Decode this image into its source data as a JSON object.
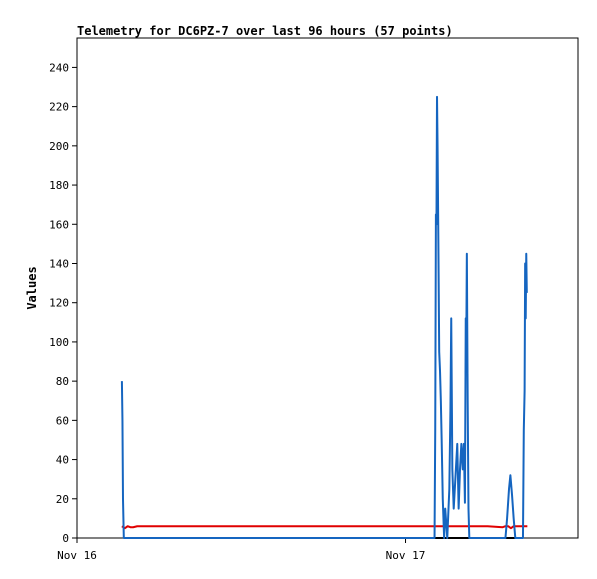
{
  "chart_data": {
    "type": "line",
    "title": "Telemetry for DC6PZ-7 over last 96 hours (57 points)",
    "xlabel": "",
    "ylabel": "Values",
    "x_ticks": [
      {
        "label": "Nov 16",
        "value": 0
      },
      {
        "label": "Nov 17",
        "value": 24
      }
    ],
    "xlim": [
      0,
      36.6
    ],
    "ylim": [
      0,
      255
    ],
    "y_ticks": [
      0,
      20,
      40,
      60,
      80,
      100,
      120,
      140,
      160,
      180,
      200,
      220,
      240
    ],
    "grid": false,
    "legend": "none",
    "series": [
      {
        "color": "#1565c0",
        "points": [
          [
            3.28,
            80
          ],
          [
            3.32,
            60
          ],
          [
            3.36,
            20
          ],
          [
            3.42,
            0
          ],
          [
            26.12,
            0
          ],
          [
            26.17,
            55
          ],
          [
            26.22,
            165
          ],
          [
            26.26,
            160
          ],
          [
            26.3,
            225
          ],
          [
            26.34,
            200
          ],
          [
            26.4,
            150
          ],
          [
            26.46,
            95
          ],
          [
            26.52,
            85
          ],
          [
            26.58,
            70
          ],
          [
            26.64,
            50
          ],
          [
            26.72,
            20
          ],
          [
            26.82,
            0
          ],
          [
            26.9,
            15
          ],
          [
            27.05,
            0
          ],
          [
            27.2,
            25
          ],
          [
            27.28,
            65
          ],
          [
            27.34,
            112
          ],
          [
            27.42,
            35
          ],
          [
            27.52,
            15
          ],
          [
            27.64,
            30
          ],
          [
            27.78,
            48
          ],
          [
            27.88,
            15
          ],
          [
            27.98,
            35
          ],
          [
            28.08,
            48
          ],
          [
            28.18,
            35
          ],
          [
            28.26,
            48
          ],
          [
            28.34,
            18
          ],
          [
            28.4,
            112
          ],
          [
            28.44,
            100
          ],
          [
            28.48,
            145
          ],
          [
            28.54,
            70
          ],
          [
            28.6,
            15
          ],
          [
            28.66,
            0
          ],
          [
            31.3,
            0
          ],
          [
            31.42,
            10
          ],
          [
            31.56,
            25
          ],
          [
            31.66,
            32
          ],
          [
            31.78,
            22
          ],
          [
            31.9,
            10
          ],
          [
            32.02,
            0
          ],
          [
            32.58,
            0
          ],
          [
            32.64,
            55
          ],
          [
            32.7,
            75
          ],
          [
            32.74,
            140
          ],
          [
            32.78,
            112
          ],
          [
            32.82,
            145
          ],
          [
            32.86,
            125
          ]
        ]
      },
      {
        "color": "#e00000",
        "points": [
          [
            3.28,
            6
          ],
          [
            3.5,
            5
          ],
          [
            3.7,
            6
          ],
          [
            3.9,
            5.5
          ],
          [
            4.1,
            5.5
          ],
          [
            4.4,
            6
          ],
          [
            10,
            6
          ],
          [
            20,
            6
          ],
          [
            30,
            6
          ],
          [
            31.1,
            5.5
          ],
          [
            31.3,
            6
          ],
          [
            31.5,
            6
          ],
          [
            31.7,
            5
          ],
          [
            31.9,
            6
          ],
          [
            32.2,
            6
          ],
          [
            32.9,
            6
          ]
        ]
      },
      {
        "color": "#000000",
        "points": [
          [
            3.42,
            0
          ],
          [
            10,
            0
          ],
          [
            20,
            0
          ],
          [
            26.12,
            0
          ],
          [
            30,
            0
          ],
          [
            32.58,
            0
          ]
        ]
      }
    ]
  }
}
